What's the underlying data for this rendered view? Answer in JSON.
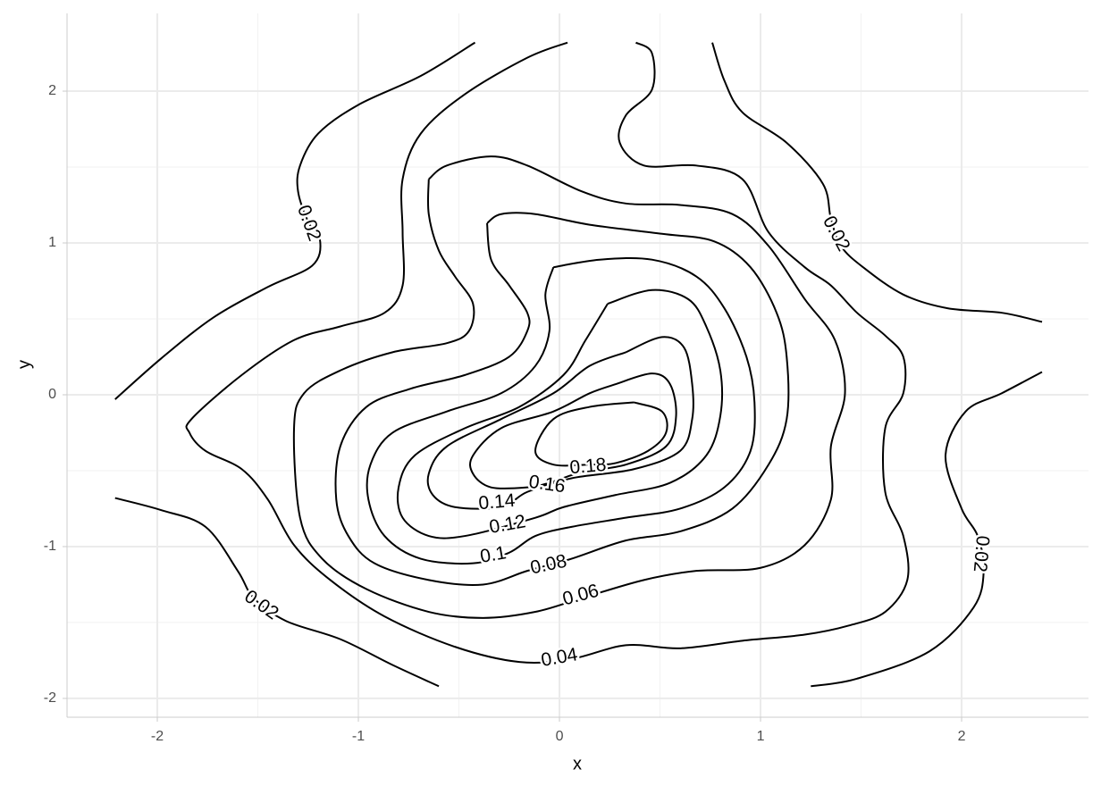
{
  "chart_data": {
    "type": "contour",
    "x_label": "x",
    "y_label": "y",
    "xlim": [
      -2.449,
      2.631
    ],
    "ylim": [
      -2.124,
      2.512
    ],
    "xticks": [
      -2,
      -1,
      0,
      1,
      2
    ],
    "yticks": [
      -2,
      -1,
      0,
      1,
      2
    ],
    "grid": true,
    "color": "#000000",
    "contours": [
      {
        "level": 0.02,
        "x": [
          -2.21,
          -1.98,
          -1.72,
          -1.45,
          -1.23,
          -1.19,
          -1.25,
          -1.3,
          -1.29,
          -1.2,
          -1.0,
          -0.69,
          -0.42
        ],
        "y": [
          -0.03,
          0.24,
          0.51,
          0.71,
          0.85,
          1.01,
          1.14,
          1.34,
          1.51,
          1.72,
          1.91,
          2.1,
          2.32
        ]
      },
      {
        "level": 0.02,
        "x": [
          0.76,
          0.82,
          0.91,
          1.13,
          1.31,
          1.35,
          1.4,
          1.51,
          1.71,
          1.93,
          2.2,
          2.4
        ],
        "y": [
          2.32,
          2.07,
          1.86,
          1.66,
          1.39,
          1.16,
          0.98,
          0.84,
          0.66,
          0.57,
          0.54,
          0.48
        ]
      },
      {
        "level": 0.02,
        "x": [
          2.4,
          2.2,
          2.02,
          1.92,
          2.0,
          2.08,
          2.11,
          2.06,
          1.84,
          1.48,
          1.25
        ],
        "y": [
          0.15,
          0.01,
          -0.11,
          -0.4,
          -0.75,
          -0.93,
          -1.16,
          -1.4,
          -1.69,
          -1.87,
          -1.92
        ]
      },
      {
        "level": 0.02,
        "x": [
          -2.21,
          -1.98,
          -1.76,
          -1.6,
          -1.52,
          -1.36,
          -1.09,
          -0.83,
          -0.6
        ],
        "y": [
          -0.68,
          -0.76,
          -0.87,
          -1.16,
          -1.34,
          -1.49,
          -1.61,
          -1.78,
          -1.92
        ]
      },
      {
        "level": 0.04,
        "x": [
          0.04,
          -0.16,
          -0.47,
          -0.69,
          -0.78,
          -0.78,
          -0.78,
          -0.87,
          -1.09,
          -1.32,
          -1.58,
          -1.83,
          -1.84,
          -1.76,
          -1.58,
          -1.45,
          -1.32,
          -1.14,
          -0.87,
          -0.52,
          -0.2,
          0.06,
          0.33,
          0.6,
          0.91,
          1.22,
          1.44,
          1.62,
          1.73,
          1.71,
          1.62,
          1.62,
          1.71,
          1.71,
          1.62,
          1.48,
          1.35,
          1.22,
          1.04,
          0.91,
          0.68,
          0.42,
          0.3,
          0.33,
          0.46,
          0.46,
          0.38
        ],
        "y": [
          2.32,
          2.22,
          1.98,
          1.72,
          1.42,
          1.07,
          0.72,
          0.54,
          0.45,
          0.36,
          0.13,
          -0.16,
          -0.25,
          -0.37,
          -0.49,
          -0.69,
          -0.99,
          -1.22,
          -1.46,
          -1.66,
          -1.76,
          -1.74,
          -1.65,
          -1.67,
          -1.62,
          -1.58,
          -1.52,
          -1.43,
          -1.22,
          -0.93,
          -0.64,
          -0.22,
          0.01,
          0.25,
          0.39,
          0.54,
          0.72,
          0.84,
          1.07,
          1.42,
          1.51,
          1.51,
          1.66,
          1.84,
          2.01,
          2.25,
          2.32
        ]
      },
      {
        "level": 0.06,
        "x": [
          -0.65,
          -0.56,
          -0.34,
          -0.16,
          0.11,
          0.33,
          0.6,
          0.86,
          1.04,
          1.22,
          1.37,
          1.42,
          1.35,
          1.35,
          1.22,
          1.0,
          0.68,
          0.42,
          0.11,
          -0.12,
          -0.38,
          -0.65,
          -0.96,
          -1.18,
          -1.29,
          -1.32,
          -1.27,
          -1.09,
          -0.83,
          -0.56,
          -0.45,
          -0.43,
          -0.52,
          -0.6,
          -0.65,
          -0.65
        ],
        "y": [
          1.42,
          1.51,
          1.57,
          1.51,
          1.34,
          1.26,
          1.25,
          1.19,
          0.98,
          0.63,
          0.36,
          0.01,
          -0.34,
          -0.69,
          -0.99,
          -1.14,
          -1.16,
          -1.22,
          -1.34,
          -1.43,
          -1.47,
          -1.43,
          -1.28,
          -1.08,
          -0.81,
          -0.22,
          0.01,
          0.16,
          0.28,
          0.34,
          0.42,
          0.6,
          0.78,
          0.95,
          1.19,
          1.42
        ]
      },
      {
        "level": 0.08,
        "x": [
          -0.36,
          -0.29,
          -0.12,
          0.15,
          0.51,
          0.77,
          0.95,
          1.08,
          1.13,
          1.13,
          1.04,
          0.86,
          0.6,
          0.33,
          0.06,
          -0.16,
          -0.38,
          -0.65,
          -0.92,
          -1.05,
          -1.11,
          -1.09,
          -0.96,
          -0.74,
          -0.47,
          -0.25,
          -0.16,
          -0.16,
          -0.25,
          -0.34,
          -0.36
        ],
        "y": [
          1.13,
          1.19,
          1.19,
          1.12,
          1.06,
          1.01,
          0.84,
          0.54,
          0.25,
          -0.16,
          -0.46,
          -0.75,
          -0.9,
          -0.96,
          -1.08,
          -1.16,
          -1.25,
          -1.22,
          -1.11,
          -0.93,
          -0.69,
          -0.34,
          -0.08,
          0.04,
          0.13,
          0.25,
          0.42,
          0.54,
          0.72,
          0.89,
          1.13
        ]
      },
      {
        "level": 0.1,
        "x": [
          -0.03,
          0.2,
          0.46,
          0.68,
          0.82,
          0.93,
          0.97,
          0.95,
          0.82,
          0.6,
          0.33,
          0.06,
          -0.12,
          -0.25,
          -0.43,
          -0.69,
          -0.87,
          -0.95,
          -0.94,
          -0.83,
          -0.56,
          -0.29,
          -0.12,
          -0.05,
          -0.07,
          -0.03
        ],
        "y": [
          0.84,
          0.89,
          0.89,
          0.78,
          0.57,
          0.25,
          -0.05,
          -0.37,
          -0.61,
          -0.75,
          -0.81,
          -0.87,
          -0.93,
          -1.04,
          -1.11,
          -1.08,
          -0.93,
          -0.69,
          -0.46,
          -0.25,
          -0.11,
          0.01,
          0.19,
          0.42,
          0.66,
          0.84
        ]
      },
      {
        "level": 0.12,
        "x": [
          0.24,
          0.46,
          0.64,
          0.73,
          0.8,
          0.8,
          0.73,
          0.55,
          0.28,
          0.02,
          -0.12,
          -0.47,
          -0.65,
          -0.78,
          -0.8,
          -0.72,
          -0.47,
          -0.2,
          0.02,
          0.13,
          0.24
        ],
        "y": [
          0.6,
          0.69,
          0.63,
          0.45,
          0.16,
          -0.14,
          -0.4,
          -0.58,
          -0.66,
          -0.74,
          -0.81,
          -0.93,
          -0.93,
          -0.81,
          -0.61,
          -0.4,
          -0.22,
          -0.08,
          0.13,
          0.36,
          0.6
        ]
      },
      {
        "level": 0.14,
        "x": [
          0.33,
          0.51,
          0.62,
          0.66,
          0.66,
          0.6,
          0.37,
          0.06,
          -0.16,
          -0.29,
          -0.52,
          -0.63,
          -0.65,
          -0.56,
          -0.29,
          -0.03,
          0.15,
          0.33
        ],
        "y": [
          0.28,
          0.38,
          0.31,
          0.07,
          -0.16,
          -0.37,
          -0.49,
          -0.55,
          -0.64,
          -0.74,
          -0.74,
          -0.66,
          -0.52,
          -0.34,
          -0.16,
          0.01,
          0.19,
          0.28
        ]
      },
      {
        "level": 0.16,
        "x": [
          0.28,
          0.46,
          0.55,
          0.58,
          0.53,
          0.33,
          0.11,
          -0.05,
          -0.16,
          -0.34,
          -0.43,
          -0.43,
          -0.29,
          -0.03,
          0.15,
          0.28
        ],
        "y": [
          0.07,
          0.14,
          0.07,
          -0.14,
          -0.34,
          -0.46,
          -0.51,
          -0.58,
          -0.61,
          -0.61,
          -0.52,
          -0.4,
          -0.22,
          -0.11,
          0.01,
          0.07
        ]
      },
      {
        "level": 0.18,
        "x": [
          0.37,
          0.51,
          0.53,
          0.44,
          0.28,
          0.15,
          -0.03,
          -0.12,
          -0.03,
          0.15,
          0.37
        ],
        "y": [
          -0.05,
          -0.11,
          -0.25,
          -0.37,
          -0.45,
          -0.46,
          -0.46,
          -0.37,
          -0.16,
          -0.08,
          -0.05
        ]
      }
    ]
  }
}
